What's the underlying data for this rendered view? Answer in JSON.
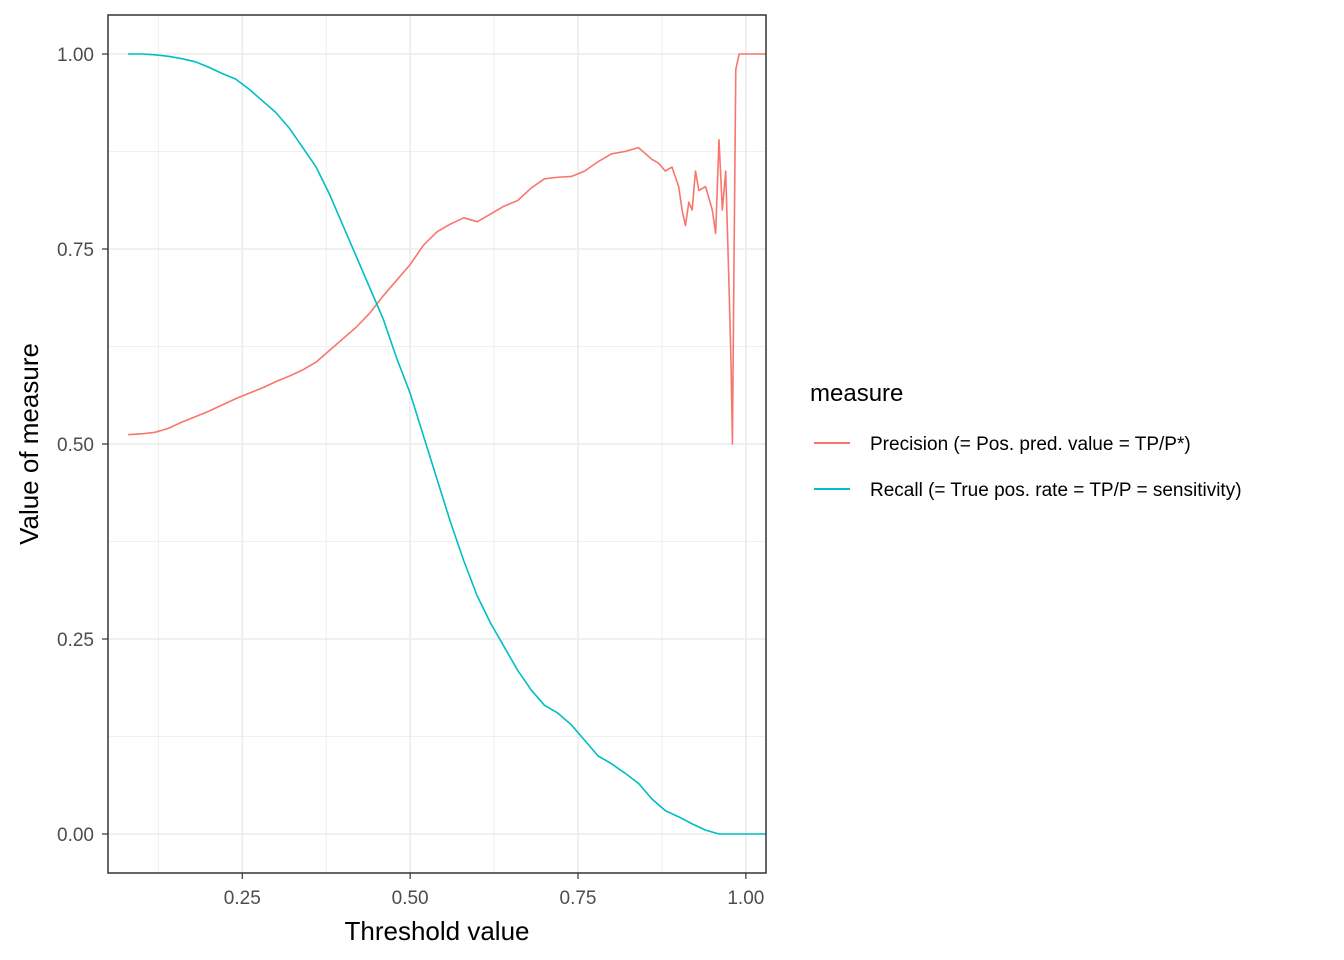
{
  "colors": {
    "precision": "#F8766D",
    "recall": "#00BFC4",
    "grid": "#EBEBEB",
    "panel_border": "#333333",
    "tick_text": "#4D4D4D"
  },
  "chart_data": {
    "type": "line",
    "title": "",
    "xlabel": "Threshold value",
    "ylabel": "Value of measure",
    "xlim": [
      0.05,
      1.03
    ],
    "ylim": [
      -0.05,
      1.05
    ],
    "x_breaks": [
      0.25,
      0.5,
      0.75,
      1.0
    ],
    "x_tick_labels": [
      "0.25",
      "0.50",
      "0.75",
      "1.00"
    ],
    "y_breaks": [
      0.0,
      0.25,
      0.5,
      0.75,
      1.0
    ],
    "y_tick_labels": [
      "0.00",
      "0.25",
      "0.50",
      "0.75",
      "1.00"
    ],
    "grid": true,
    "legend": {
      "title": "measure",
      "position": "right"
    },
    "series": [
      {
        "name": "Precision (= Pos. pred. value = TP/P*)",
        "color": "#F8766D",
        "x": [
          0.08,
          0.1,
          0.12,
          0.14,
          0.16,
          0.18,
          0.2,
          0.22,
          0.24,
          0.26,
          0.28,
          0.3,
          0.32,
          0.34,
          0.36,
          0.38,
          0.4,
          0.42,
          0.44,
          0.46,
          0.48,
          0.5,
          0.52,
          0.54,
          0.56,
          0.58,
          0.6,
          0.62,
          0.64,
          0.66,
          0.68,
          0.7,
          0.72,
          0.74,
          0.76,
          0.78,
          0.8,
          0.82,
          0.84,
          0.86,
          0.87,
          0.88,
          0.89,
          0.9,
          0.905,
          0.91,
          0.915,
          0.92,
          0.925,
          0.93,
          0.94,
          0.95,
          0.955,
          0.96,
          0.965,
          0.97,
          0.975,
          0.978,
          0.98,
          0.982,
          0.985,
          0.99,
          1.0,
          1.01,
          1.03
        ],
        "values": [
          0.512,
          0.513,
          0.515,
          0.52,
          0.528,
          0.535,
          0.542,
          0.55,
          0.558,
          0.565,
          0.572,
          0.58,
          0.587,
          0.595,
          0.605,
          0.62,
          0.635,
          0.65,
          0.668,
          0.69,
          0.71,
          0.73,
          0.755,
          0.772,
          0.782,
          0.79,
          0.785,
          0.795,
          0.805,
          0.812,
          0.828,
          0.84,
          0.842,
          0.843,
          0.85,
          0.862,
          0.872,
          0.875,
          0.88,
          0.865,
          0.86,
          0.85,
          0.855,
          0.83,
          0.8,
          0.78,
          0.81,
          0.8,
          0.85,
          0.825,
          0.83,
          0.8,
          0.77,
          0.89,
          0.8,
          0.85,
          0.7,
          0.6,
          0.5,
          0.7,
          0.98,
          1.0,
          1.0,
          1.0,
          1.0
        ]
      },
      {
        "name": "Recall (= True pos. rate = TP/P = sensitivity)",
        "color": "#00BFC4",
        "x": [
          0.08,
          0.1,
          0.12,
          0.14,
          0.16,
          0.18,
          0.2,
          0.22,
          0.24,
          0.26,
          0.28,
          0.3,
          0.32,
          0.34,
          0.36,
          0.38,
          0.4,
          0.42,
          0.44,
          0.46,
          0.48,
          0.5,
          0.52,
          0.54,
          0.56,
          0.58,
          0.6,
          0.62,
          0.64,
          0.66,
          0.68,
          0.7,
          0.72,
          0.74,
          0.76,
          0.78,
          0.8,
          0.82,
          0.84,
          0.86,
          0.88,
          0.9,
          0.92,
          0.94,
          0.96,
          0.98,
          1.0,
          1.03
        ],
        "values": [
          1.0,
          1.0,
          0.999,
          0.997,
          0.994,
          0.99,
          0.983,
          0.975,
          0.968,
          0.955,
          0.94,
          0.925,
          0.905,
          0.88,
          0.855,
          0.82,
          0.78,
          0.74,
          0.7,
          0.66,
          0.61,
          0.565,
          0.51,
          0.455,
          0.4,
          0.35,
          0.305,
          0.27,
          0.24,
          0.21,
          0.185,
          0.165,
          0.155,
          0.14,
          0.12,
          0.1,
          0.09,
          0.078,
          0.065,
          0.045,
          0.03,
          0.022,
          0.013,
          0.005,
          0.0,
          0.0,
          0.0,
          0.0
        ]
      }
    ]
  }
}
